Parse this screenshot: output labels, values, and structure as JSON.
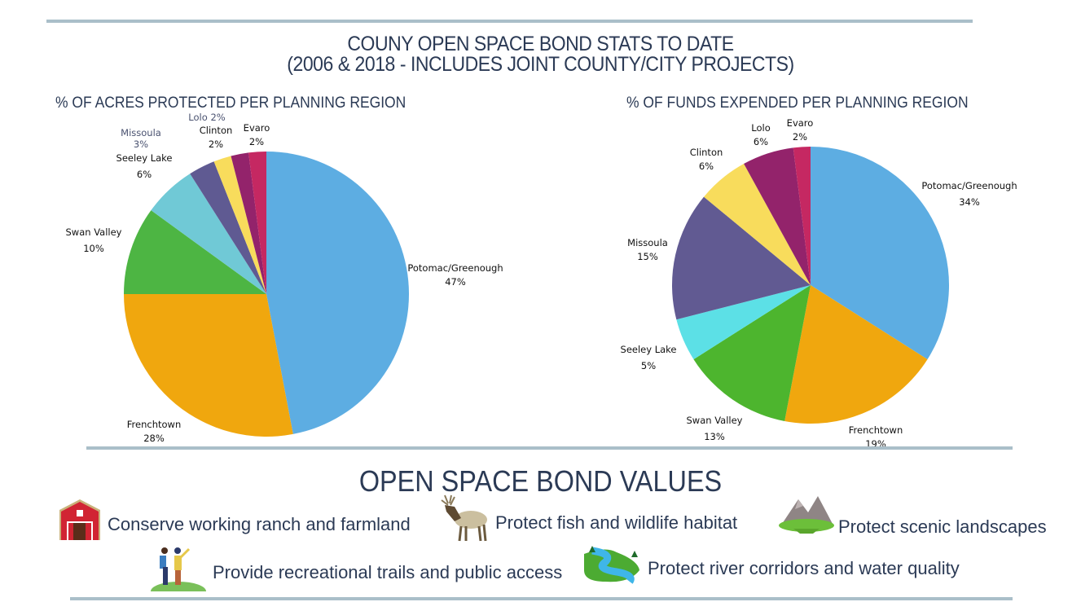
{
  "title_line1": "COUNY OPEN SPACE BOND STATS TO DATE",
  "title_line2": "(2006 & 2018 - INCLUDES JOINT COUNTY/CITY PROJECTS)",
  "chart_data": [
    {
      "type": "pie",
      "title": "% OF ACRES PROTECTED PER PLANNING REGION",
      "slices": [
        {
          "label": "Potomac/Greenough",
          "value": 47,
          "display": "47%",
          "color": "#5dade2"
        },
        {
          "label": "Frenchtown",
          "value": 28,
          "display": "28%",
          "color": "#f0a70e"
        },
        {
          "label": "Swan Valley",
          "value": 10,
          "display": "10%",
          "color": "#4db543"
        },
        {
          "label": "Seeley Lake",
          "value": 6,
          "display": "6%",
          "color": "#70c9d6"
        },
        {
          "label": "Missoula",
          "value": 3,
          "display": "3%",
          "color": "#5f5a92"
        },
        {
          "label": "Clinton",
          "value": 2,
          "display": "2%",
          "color": "#f8dc5c"
        },
        {
          "label": "Lolo",
          "value": 2,
          "display": "2%",
          "color": "#93236b"
        },
        {
          "label": "Evaro",
          "value": 2,
          "display": "2%",
          "color": "#c52862"
        }
      ]
    },
    {
      "type": "pie",
      "title": "% OF FUNDS EXPENDED PER PLANNING REGION",
      "slices": [
        {
          "label": "Potomac/Greenough",
          "value": 34,
          "display": "34%",
          "color": "#5dade2"
        },
        {
          "label": "Frenchtown",
          "value": 19,
          "display": "19%",
          "color": "#f0a70e"
        },
        {
          "label": "Swan Valley",
          "value": 13,
          "display": "13%",
          "color": "#4db52e"
        },
        {
          "label": "Seeley Lake",
          "value": 5,
          "display": "5%",
          "color": "#5ce0e6"
        },
        {
          "label": "Missoula",
          "value": 15,
          "display": "15%",
          "color": "#615a92"
        },
        {
          "label": "Clinton",
          "value": 6,
          "display": "6%",
          "color": "#f8dc5c"
        },
        {
          "label": "Lolo",
          "value": 6,
          "display": "6%",
          "color": "#93236b"
        },
        {
          "label": "Evaro",
          "value": 2,
          "display": "2%",
          "color": "#c52862"
        }
      ]
    }
  ],
  "values_heading": "OPEN SPACE BOND VALUES",
  "values": [
    {
      "icon": "barn-icon",
      "text": "Conserve working ranch and farmland"
    },
    {
      "icon": "elk-icon",
      "text": "Protect fish and wildlife habitat"
    },
    {
      "icon": "mountain-icon",
      "text": "Protect scenic landscapes"
    },
    {
      "icon": "hikers-icon",
      "text": "Provide recreational trails and public access"
    },
    {
      "icon": "river-icon",
      "text": "Protect river corridors and water quality"
    }
  ]
}
